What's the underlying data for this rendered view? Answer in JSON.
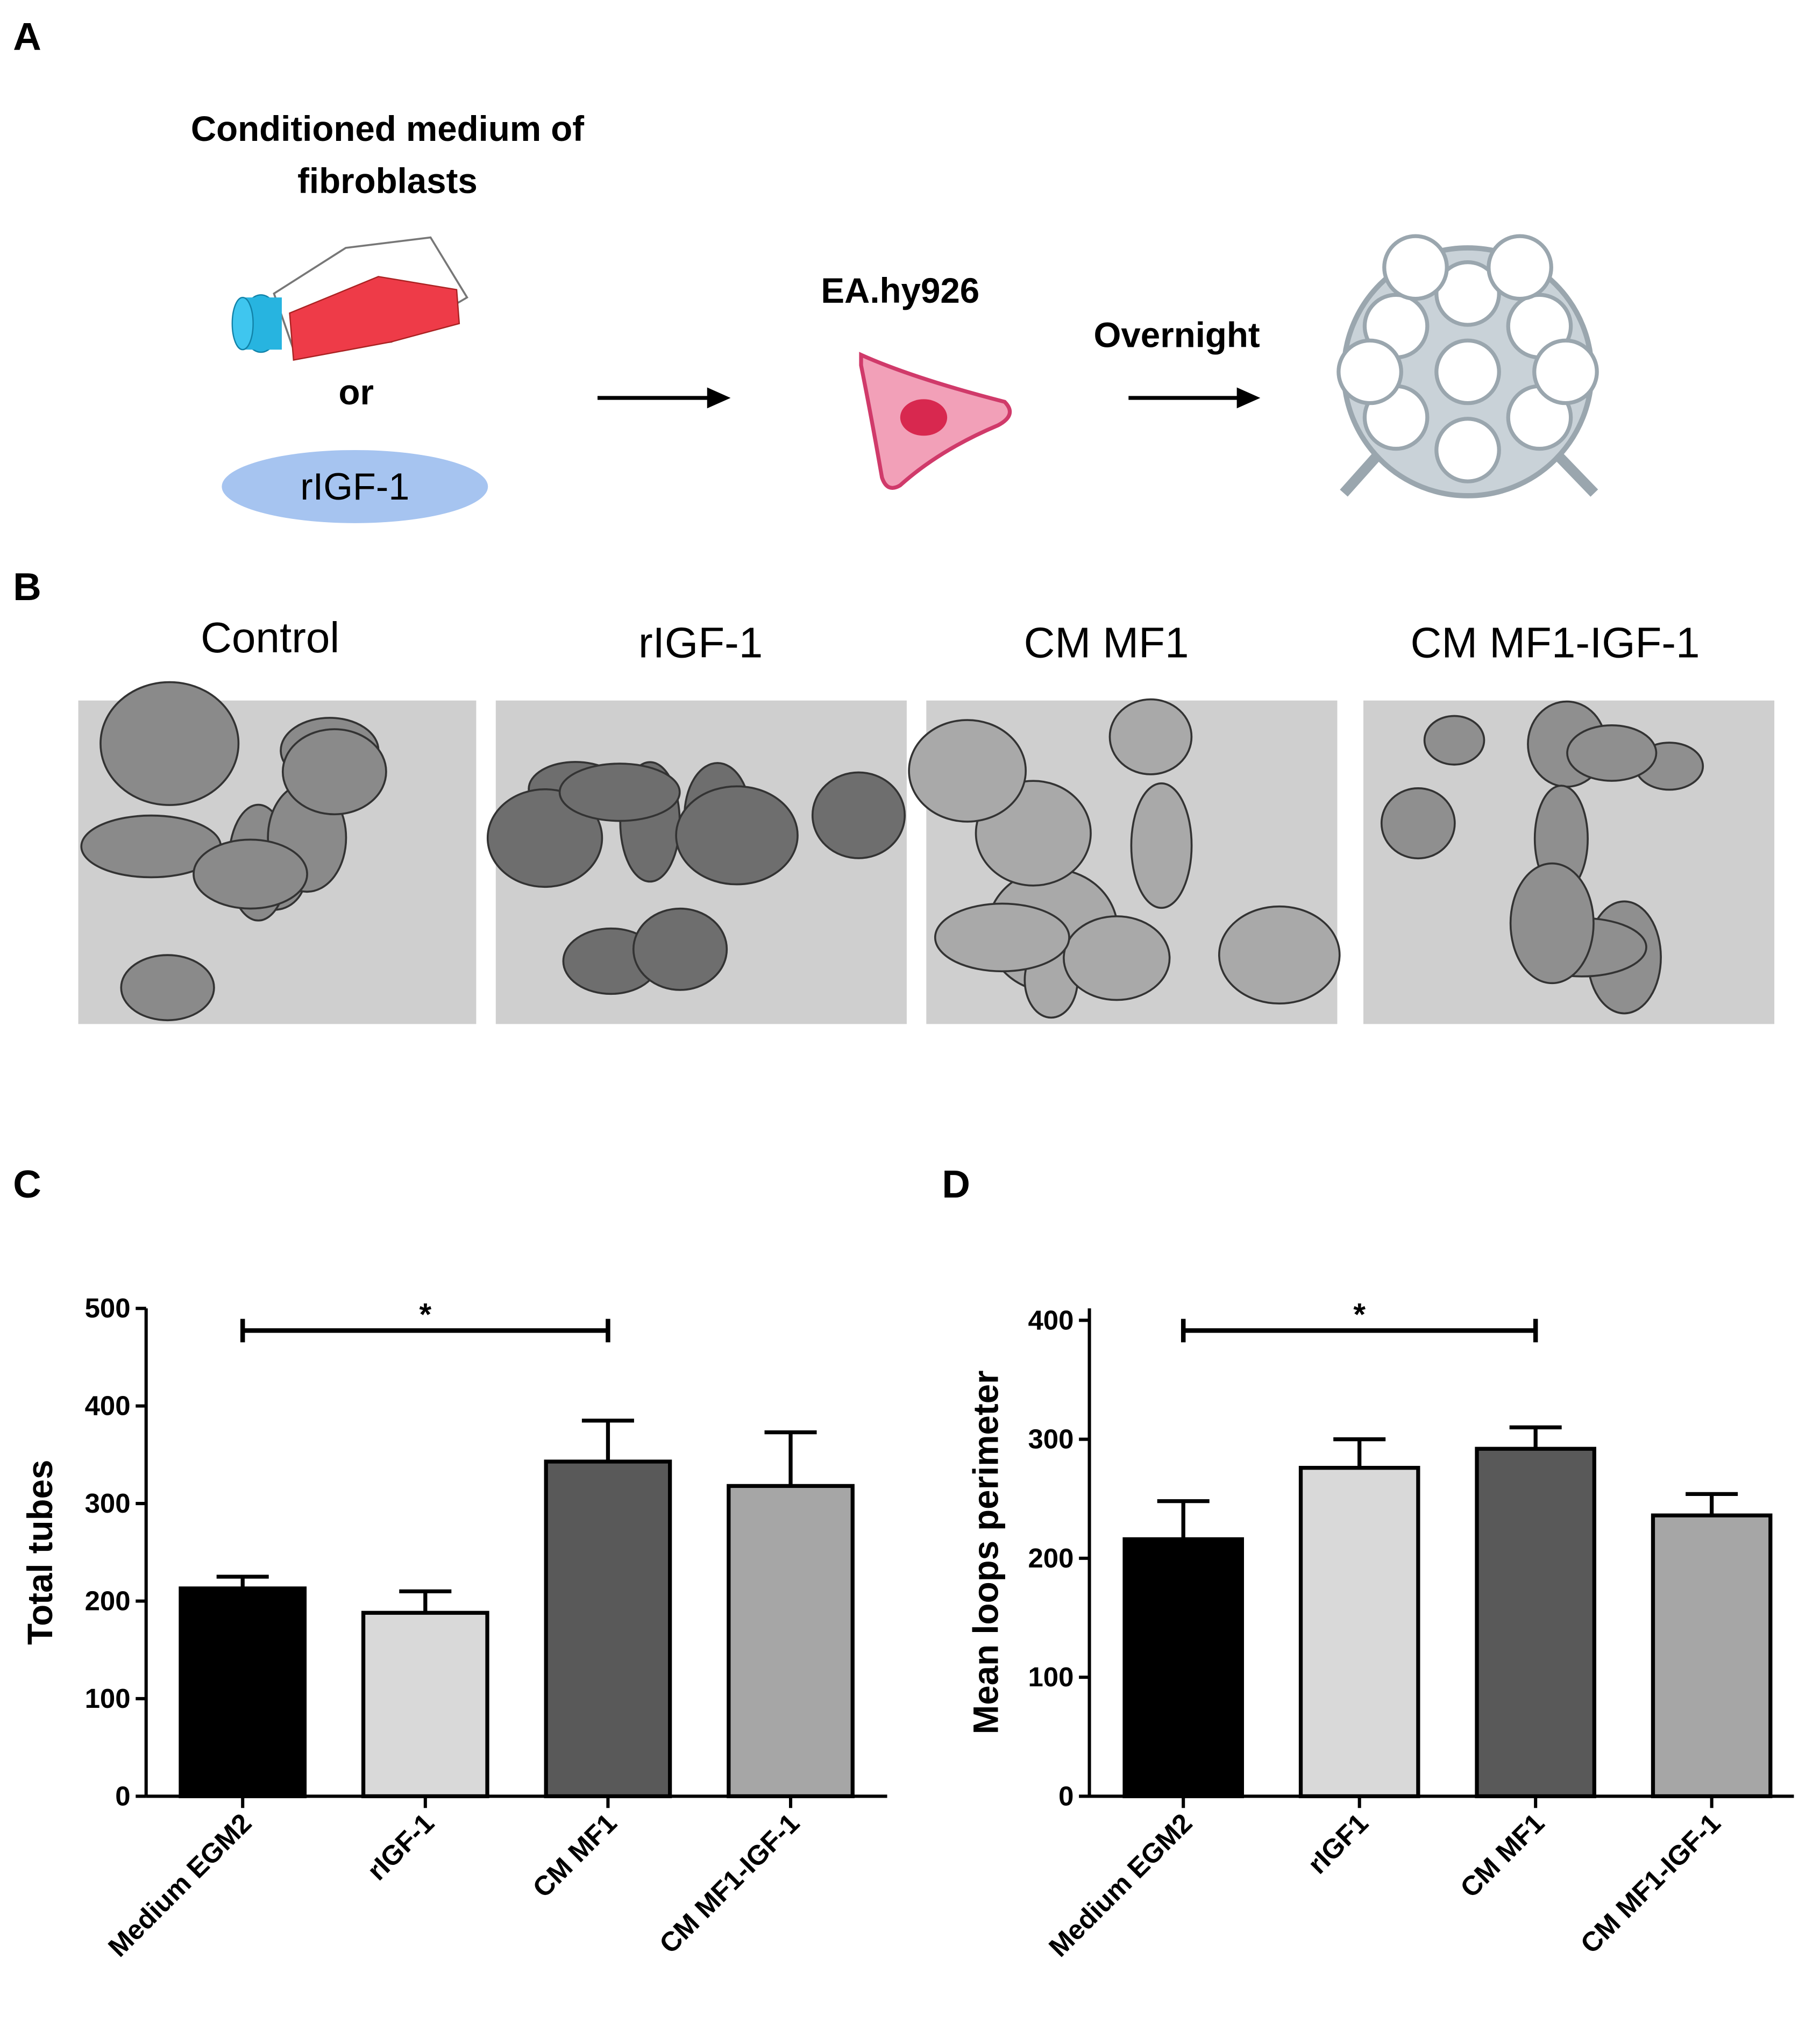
{
  "panel_labels": [
    "A",
    "B",
    "C",
    "D"
  ],
  "diagram": {
    "source_lines": [
      "Conditioned medium of",
      "fibroblasts"
    ],
    "or": "or",
    "alternative": "rIGF-1",
    "cells": "EA.hy926",
    "step": "Overnight"
  },
  "micrograph_titles": [
    "Control",
    "rIGF-1",
    "CM MF1",
    "CM MF1-IGF-1"
  ],
  "chart_data": [
    {
      "type": "bar",
      "y_label": "Total tubes",
      "categories": [
        "Medium EGM2",
        "rIGF-1",
        "CM MF1",
        "CM MF1-IGF-1"
      ],
      "values": [
        213,
        188,
        343,
        318
      ],
      "errors": [
        12,
        22,
        42,
        55
      ],
      "colors": [
        "#000000",
        "#d9d9d9",
        "#595959",
        "#a6a6a6"
      ],
      "ylim": [
        0,
        500
      ],
      "yticks": [
        0,
        100,
        200,
        300,
        400,
        500
      ],
      "annotations": [
        {
          "text": "*",
          "from": 0,
          "to": 2
        }
      ]
    },
    {
      "type": "bar",
      "y_label": "Mean loops perimeter",
      "categories": [
        "Medium EGM2",
        "rIGF1",
        "CM MF1",
        "CM MF1-IGF-1"
      ],
      "values": [
        216,
        276,
        292,
        236
      ],
      "errors": [
        32,
        24,
        18,
        18
      ],
      "colors": [
        "#000000",
        "#d9d9d9",
        "#595959",
        "#a6a6a6"
      ],
      "ylim": [
        0,
        410
      ],
      "yticks": [
        0,
        100,
        200,
        300,
        400
      ],
      "annotations": [
        {
          "text": "*",
          "from": 0,
          "to": 2
        }
      ]
    }
  ]
}
